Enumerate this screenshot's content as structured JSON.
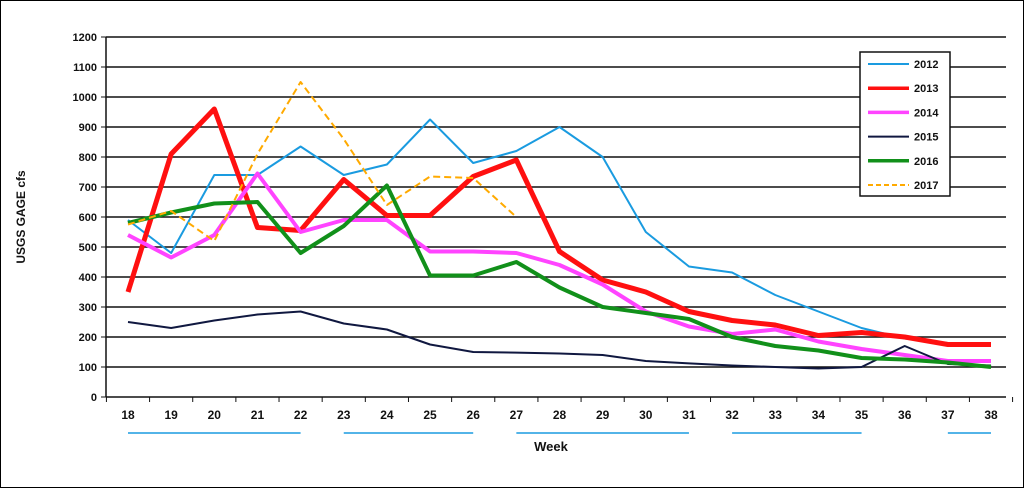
{
  "chart_data": {
    "type": "line",
    "title": "",
    "xlabel": "Week",
    "ylabel": "USGS  GAGE  cfs",
    "x": [
      18,
      19,
      20,
      21,
      22,
      23,
      24,
      25,
      26,
      27,
      28,
      29,
      30,
      31,
      32,
      33,
      34,
      35,
      36,
      37,
      38
    ],
    "ylim": [
      0,
      1200
    ],
    "yticks": [
      0,
      100,
      200,
      300,
      400,
      500,
      600,
      700,
      800,
      900,
      1000,
      1100,
      1200
    ],
    "grid": true,
    "legend_position": "top-right",
    "series": [
      {
        "name": "2012",
        "color": "#1a9be0",
        "width": 2,
        "dash": false,
        "values": [
          590,
          480,
          740,
          740,
          835,
          740,
          775,
          925,
          780,
          820,
          900,
          800,
          550,
          435,
          415,
          340,
          285,
          230,
          195,
          180,
          175
        ]
      },
      {
        "name": "2013",
        "color": "#ff1010",
        "width": 5,
        "dash": false,
        "values": [
          350,
          810,
          960,
          565,
          555,
          725,
          605,
          605,
          735,
          790,
          485,
          390,
          350,
          285,
          255,
          240,
          205,
          215,
          200,
          175,
          175
        ]
      },
      {
        "name": "2014",
        "color": "#ff44ff",
        "width": 4,
        "dash": false,
        "values": [
          540,
          465,
          540,
          745,
          550,
          590,
          590,
          485,
          485,
          480,
          440,
          375,
          285,
          235,
          210,
          225,
          185,
          160,
          140,
          120,
          120
        ]
      },
      {
        "name": "2015",
        "color": "#101840",
        "width": 2,
        "dash": false,
        "values": [
          250,
          230,
          255,
          275,
          285,
          245,
          225,
          175,
          150,
          148,
          145,
          140,
          120,
          112,
          105,
          100,
          95,
          100,
          170,
          110,
          105
        ]
      },
      {
        "name": "2016",
        "color": "#11901a",
        "width": 4,
        "dash": false,
        "values": [
          580,
          615,
          645,
          650,
          480,
          570,
          705,
          405,
          405,
          450,
          365,
          300,
          280,
          260,
          200,
          170,
          155,
          130,
          125,
          115,
          100
        ]
      },
      {
        "name": "2017",
        "color": "#ffaa00",
        "width": 2,
        "dash": true,
        "values": [
          575,
          620,
          520,
          810,
          1050,
          860,
          640,
          735,
          730,
          600,
          null,
          null,
          null,
          null,
          null,
          null,
          null,
          null,
          null,
          null,
          null
        ]
      }
    ],
    "week_groups": [
      [
        18,
        22
      ],
      [
        23,
        26
      ],
      [
        27,
        31
      ],
      [
        32,
        35
      ],
      [
        37,
        38
      ]
    ],
    "week_group_color": "#1a9be0"
  }
}
